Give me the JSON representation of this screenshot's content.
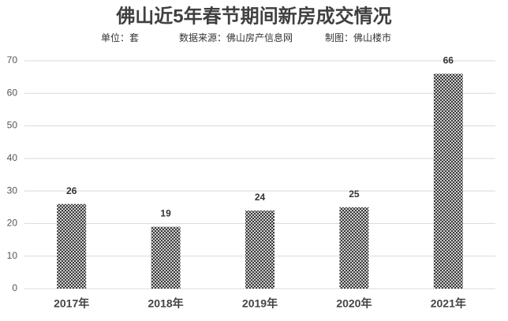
{
  "chart_data": {
    "type": "bar",
    "title": "佛山近5年春节期间新房成交情况",
    "notes": [
      "单位：套",
      "数据来源：佛山房产信息网",
      "制图：佛山楼市"
    ],
    "categories": [
      "2017年",
      "2018年",
      "2019年",
      "2020年",
      "2021年"
    ],
    "values": [
      26,
      19,
      24,
      25,
      66
    ],
    "color": "#3a3a3a",
    "ylim": [
      0,
      70
    ],
    "yticks": [
      0,
      10,
      20,
      30,
      40,
      50,
      60,
      70
    ],
    "grid": true
  }
}
